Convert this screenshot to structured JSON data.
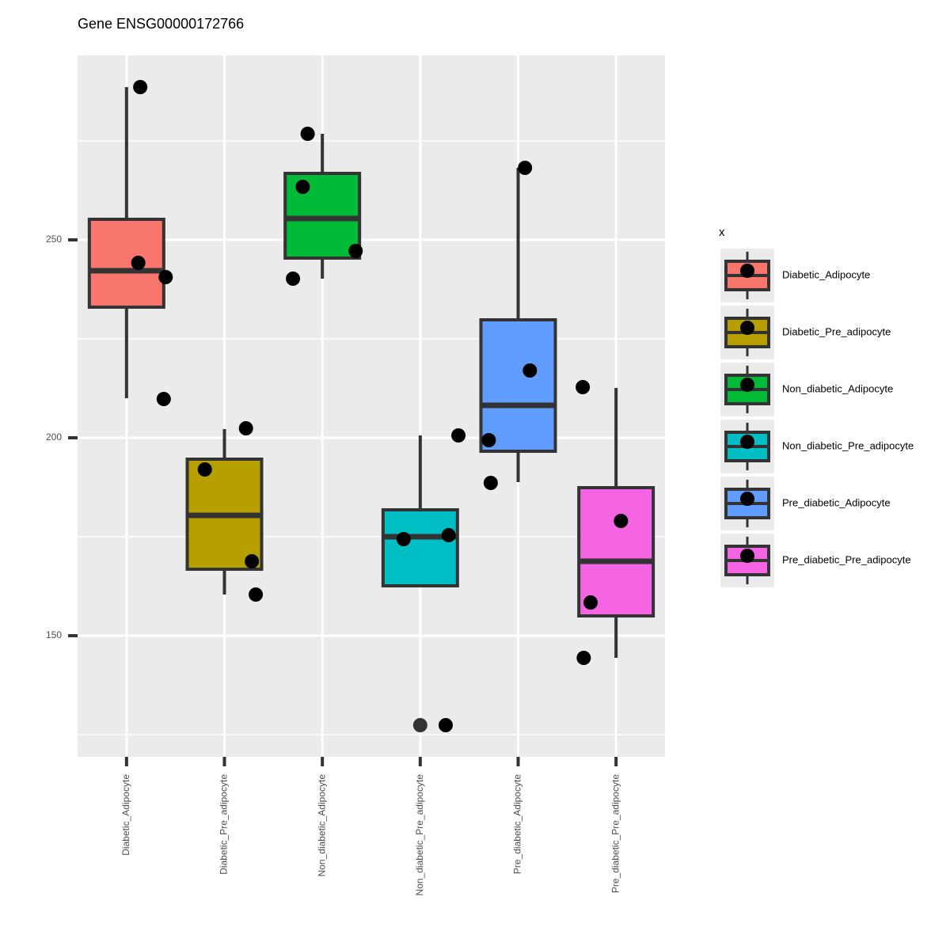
{
  "chart_data": {
    "type": "box",
    "title": "Gene ENSG00000172766",
    "legend_title": "x",
    "legend_position": "right",
    "grid": true,
    "categories": [
      "Diabetic_Adipocyte",
      "Diabetic_Pre_adipocyte",
      "Non_diabetic_Adipocyte",
      "Non_diabetic_Pre_adipocyte",
      "Pre_diabetic_Adipocyte",
      "Pre_diabetic_Pre_adipocyte"
    ],
    "colors": [
      "#F8766D",
      "#B79F00",
      "#00BA38",
      "#00BFC4",
      "#619CFF",
      "#F564E3"
    ],
    "boxes": [
      {
        "lower_whisker": 210,
        "q1": 233,
        "median": 242.2,
        "q3": 255.2,
        "upper_whisker": 288.6,
        "outliers": []
      },
      {
        "lower_whisker": 160.4,
        "q1": 166.8,
        "median": 180.4,
        "q3": 194.6,
        "upper_whisker": 202.2,
        "outliers": []
      },
      {
        "lower_whisker": 240.2,
        "q1": 245.4,
        "median": 255.4,
        "q3": 266.8,
        "upper_whisker": 276.8,
        "outliers": []
      },
      {
        "lower_whisker": 162.6,
        "q1": 162.6,
        "median": 175,
        "q3": 181.8,
        "upper_whisker": 200.6,
        "outliers": [
          127.4
        ]
      },
      {
        "lower_whisker": 188.8,
        "q1": 196.6,
        "median": 208.2,
        "q3": 229.8,
        "upper_whisker": 268.2,
        "outliers": []
      },
      {
        "lower_whisker": 144.4,
        "q1": 155,
        "median": 168.8,
        "q3": 187.4,
        "upper_whisker": 212.6,
        "outliers": []
      }
    ],
    "points": [
      [
        288.6,
        244.2,
        240.6,
        209.8
      ],
      [
        202.4,
        192,
        168.8,
        160.4
      ],
      [
        276.8,
        263.4,
        247.2,
        240.2
      ],
      [
        200.6,
        174.4,
        175.4,
        127.4
      ],
      [
        268.2,
        217,
        199.4,
        188.6
      ],
      [
        212.8,
        179,
        158.4,
        144.4
      ]
    ],
    "ylim": [
      119.4,
      296.6
    ],
    "yticks": [
      150,
      200,
      250
    ],
    "minor_yticks": [
      125,
      175,
      225,
      275
    ]
  }
}
